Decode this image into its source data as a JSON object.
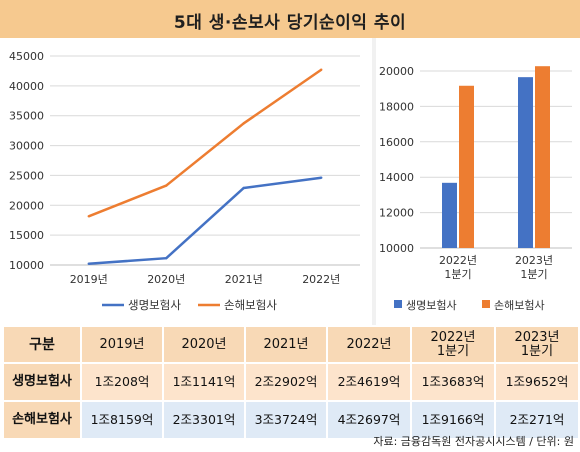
{
  "title": "5대 생·손보사 당기순이익 추이",
  "colors": {
    "life": "#4472c4",
    "nonlife": "#ed7d31",
    "title_bg": "#f6c98f"
  },
  "chart_data": [
    {
      "type": "line",
      "x": [
        "2019년",
        "2020년",
        "2021년",
        "2022년"
      ],
      "ylim": [
        10000,
        45000
      ],
      "yticks": [
        "10000",
        "15000",
        "20000",
        "25000",
        "30000",
        "35000",
        "40000",
        "45000"
      ],
      "series": [
        {
          "name": "생명보험사",
          "values": [
            10208,
            11141,
            22902,
            24619
          ]
        },
        {
          "name": "손해보험사",
          "values": [
            18159,
            23301,
            33724,
            42697
          ]
        }
      ],
      "grid": true,
      "legend": "bottom"
    },
    {
      "type": "bar",
      "categories": [
        [
          "2022년",
          "1분기"
        ],
        [
          "2023년",
          "1분기"
        ]
      ],
      "ylim": [
        10000,
        20000
      ],
      "yticks": [
        "10000",
        "12000",
        "14000",
        "16000",
        "18000",
        "20000"
      ],
      "series": [
        {
          "name": "생명보험사",
          "values": [
            13683,
            19652
          ]
        },
        {
          "name": "손해보험사",
          "values": [
            19166,
            20271
          ]
        }
      ],
      "grid": true,
      "legend": "bottom"
    }
  ],
  "table": {
    "headers": [
      [
        "구분"
      ],
      [
        "2019년"
      ],
      [
        "2020년"
      ],
      [
        "2021년"
      ],
      [
        "2022년"
      ],
      [
        "2022년",
        "1분기"
      ],
      [
        "2023년",
        "1분기"
      ]
    ],
    "rows": [
      {
        "label": "생명보험사",
        "cells": [
          "1조208억",
          "1조1141억",
          "2조2902억",
          "2조4619억",
          "1조3683억",
          "1조9652억"
        ]
      },
      {
        "label": "손해보험사",
        "cells": [
          "1조8159억",
          "2조3301억",
          "3조3724억",
          "4조2697억",
          "1조9166억",
          "2조271억"
        ]
      }
    ]
  },
  "source": "자료: 금융감독원 전자공시시스템 / 단위: 원"
}
